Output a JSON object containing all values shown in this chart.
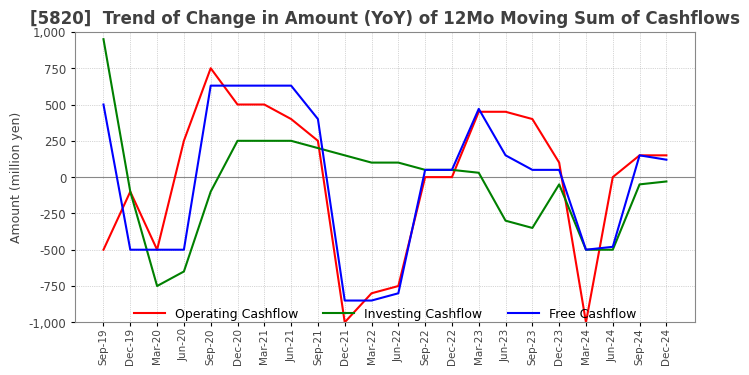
{
  "title": "[5820]  Trend of Change in Amount (YoY) of 12Mo Moving Sum of Cashflows",
  "ylabel": "Amount (million yen)",
  "ylim": [
    -1000,
    1000
  ],
  "yticks": [
    -1000,
    -750,
    -500,
    -250,
    0,
    250,
    500,
    750,
    1000
  ],
  "x_labels": [
    "Sep-19",
    "Dec-19",
    "Mar-20",
    "Jun-20",
    "Sep-20",
    "Dec-20",
    "Mar-21",
    "Jun-21",
    "Sep-21",
    "Dec-21",
    "Mar-22",
    "Jun-22",
    "Sep-22",
    "Dec-22",
    "Mar-23",
    "Jun-23",
    "Sep-23",
    "Dec-23",
    "Mar-24",
    "Jun-24",
    "Sep-24",
    "Dec-24"
  ],
  "operating": [
    -500,
    -100,
    -500,
    250,
    750,
    500,
    500,
    400,
    250,
    -1000,
    -800,
    -750,
    0,
    0,
    450,
    450,
    400,
    100,
    -1000,
    0,
    150,
    150
  ],
  "investing": [
    950,
    -100,
    -750,
    -650,
    -100,
    250,
    250,
    250,
    200,
    150,
    100,
    100,
    50,
    50,
    30,
    -300,
    -350,
    -50,
    -500,
    -500,
    -50,
    -30
  ],
  "free": [
    500,
    -500,
    -500,
    -500,
    630,
    630,
    630,
    630,
    400,
    -850,
    -850,
    -800,
    50,
    50,
    470,
    150,
    50,
    50,
    -500,
    -480,
    150,
    120
  ],
  "operating_color": "#FF0000",
  "investing_color": "#008000",
  "free_color": "#0000FF",
  "background_color": "#FFFFFF",
  "grid_color": "#B0B0B0",
  "title_color": "#404040",
  "title_fontsize": 12,
  "legend_labels": [
    "Operating Cashflow",
    "Investing Cashflow",
    "Free Cashflow"
  ]
}
